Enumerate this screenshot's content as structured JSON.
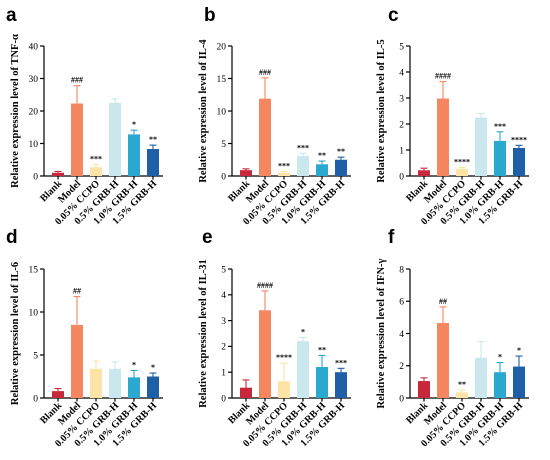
{
  "colors": [
    "#c8283c",
    "#f4875f",
    "#fde4a6",
    "#c9e7ed",
    "#2aa8cf",
    "#1f5fa8"
  ],
  "categories": [
    "Blank",
    "Model",
    "0.05% CCPO",
    "0.5% GRB-H",
    "1.0% GRB-H",
    "1.5% GRB-H"
  ],
  "chart_data": [
    {
      "type": "bar",
      "panel": "a",
      "ylabel": "Relative expression level of TNF-α",
      "ylim": [
        0,
        40
      ],
      "yticks": [
        0,
        10,
        20,
        30,
        40
      ],
      "values": [
        1.0,
        22.3,
        2.7,
        22.5,
        12.8,
        8.3
      ],
      "errors": [
        0.4,
        5.5,
        0.8,
        1.2,
        1.3,
        1.2
      ],
      "significance": [
        "",
        "###",
        "***",
        "",
        "*",
        "**"
      ]
    },
    {
      "type": "bar",
      "panel": "b",
      "ylabel": "Relative expression level of IL-4",
      "ylim": [
        0,
        20
      ],
      "yticks": [
        0,
        5,
        10,
        15,
        20
      ],
      "values": [
        0.9,
        11.9,
        0.5,
        3.1,
        1.8,
        2.5
      ],
      "errors": [
        0.2,
        3.2,
        0.2,
        0.4,
        0.5,
        0.4
      ],
      "significance": [
        "",
        "###",
        "***",
        "***",
        "**",
        "**"
      ]
    },
    {
      "type": "bar",
      "panel": "c",
      "ylabel": "Relative expression level of IL-5",
      "ylim": [
        0,
        5
      ],
      "yticks": [
        0,
        1,
        2,
        3,
        4,
        5
      ],
      "values": [
        0.22,
        2.98,
        0.28,
        2.25,
        1.35,
        1.08
      ],
      "errors": [
        0.08,
        0.65,
        0.05,
        0.15,
        0.35,
        0.1
      ],
      "significance": [
        "",
        "####",
        "****",
        "",
        "***",
        "****"
      ]
    },
    {
      "type": "bar",
      "panel": "d",
      "ylabel": "Relative expression level of IL-6",
      "ylim": [
        0,
        15
      ],
      "yticks": [
        0,
        5,
        10,
        15
      ],
      "values": [
        0.8,
        8.5,
        3.4,
        3.4,
        2.4,
        2.5
      ],
      "errors": [
        0.3,
        3.3,
        0.9,
        0.8,
        0.8,
        0.4
      ],
      "significance": [
        "",
        "##",
        "",
        "",
        "*",
        "*"
      ]
    },
    {
      "type": "bar",
      "panel": "e",
      "ylabel": "Relative expression level of IL-31",
      "ylim": [
        0,
        5
      ],
      "yticks": [
        0,
        1,
        2,
        3,
        4,
        5
      ],
      "values": [
        0.4,
        3.4,
        0.65,
        2.2,
        1.2,
        1.0
      ],
      "errors": [
        0.3,
        0.75,
        0.7,
        0.15,
        0.45,
        0.15
      ],
      "significance": [
        "",
        "####",
        "****",
        "*",
        "**",
        "***"
      ]
    },
    {
      "type": "bar",
      "panel": "f",
      "ylabel": "Relative expression level of IFN-γ",
      "ylim": [
        0,
        8
      ],
      "yticks": [
        0,
        2,
        4,
        6,
        8
      ],
      "values": [
        1.05,
        4.65,
        0.35,
        2.5,
        1.6,
        1.95
      ],
      "errors": [
        0.2,
        1.0,
        0.15,
        1.0,
        0.6,
        0.65
      ],
      "significance": [
        "",
        "##",
        "**",
        "",
        "*",
        "*"
      ]
    }
  ]
}
